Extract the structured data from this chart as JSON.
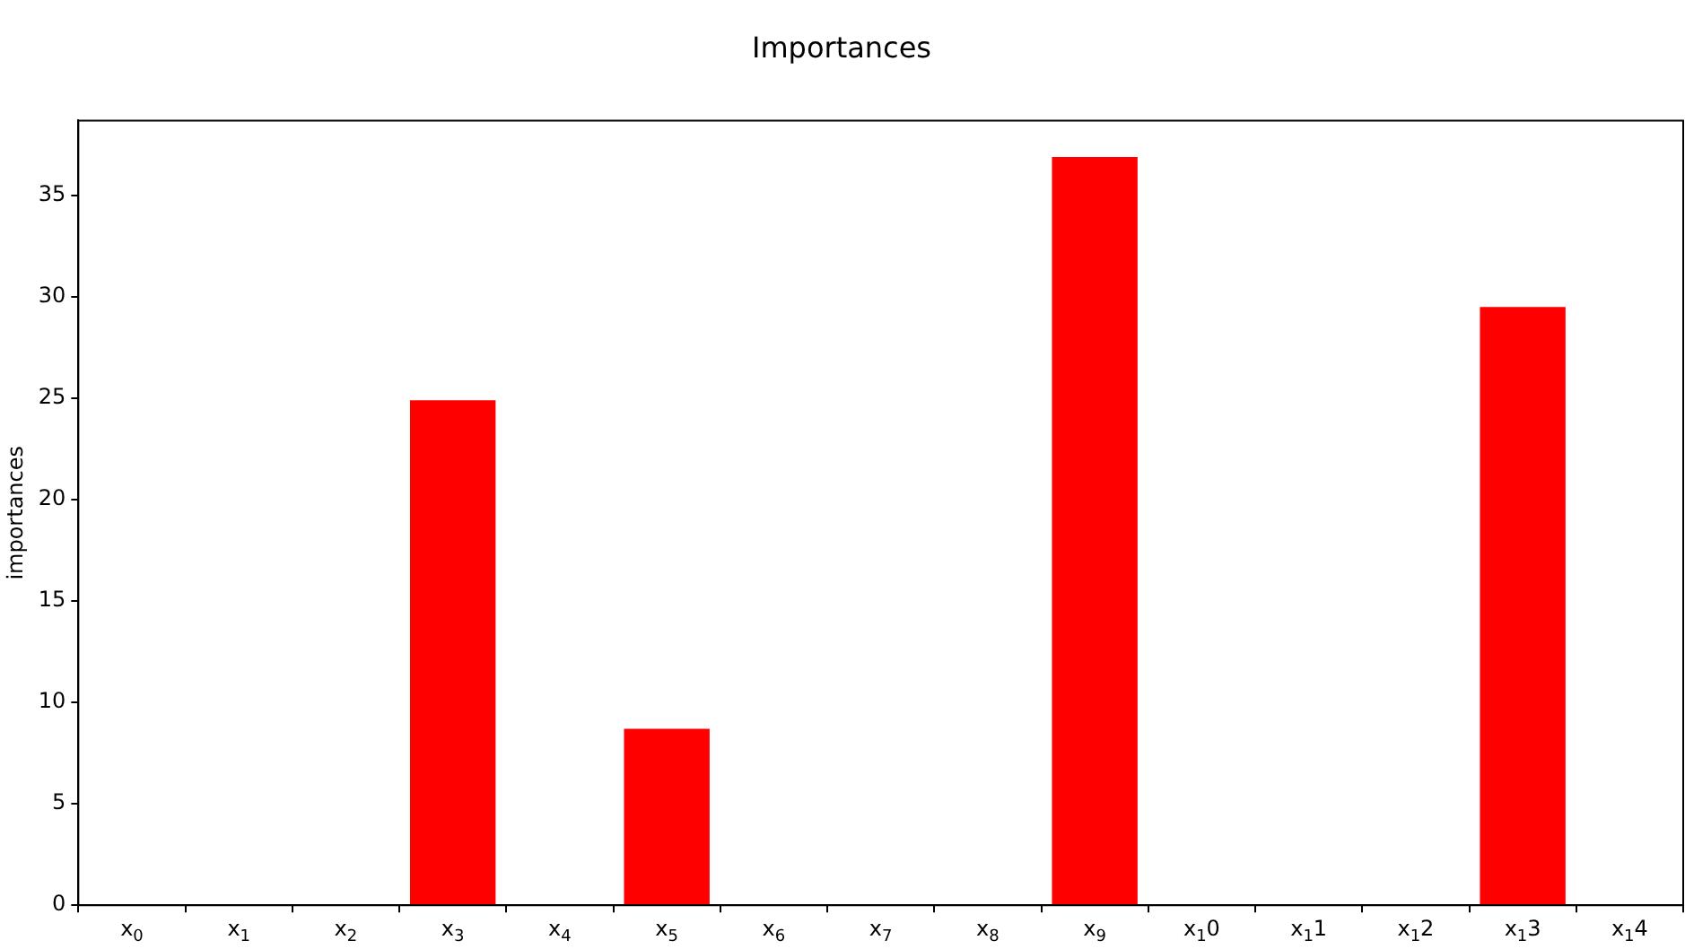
{
  "chart_data": {
    "type": "bar",
    "title": "Importances",
    "ylabel": "importances",
    "categories": [
      "x$_{0}$",
      "x$_{1}$",
      "x$_{2}$",
      "x$_{3}$",
      "x$_{4}$",
      "x$_{5}$",
      "x$_{6}$",
      "x$_{7}$",
      "x$_{8}$",
      "x$_{9}$",
      "x$_{1}$0",
      "x$_{1}$1",
      "x$_{1}$2",
      "x$_{1}$3",
      "x$_{1}$4"
    ],
    "values": [
      0,
      0,
      0,
      24.9,
      0,
      8.7,
      0,
      0,
      0,
      36.9,
      0,
      0,
      0,
      29.5,
      0
    ],
    "color": "#ff0000",
    "ylim": [
      0,
      38.7
    ],
    "yticks": [
      0,
      5,
      10,
      15,
      20,
      25,
      30,
      35
    ],
    "grid": false,
    "legend": false
  }
}
